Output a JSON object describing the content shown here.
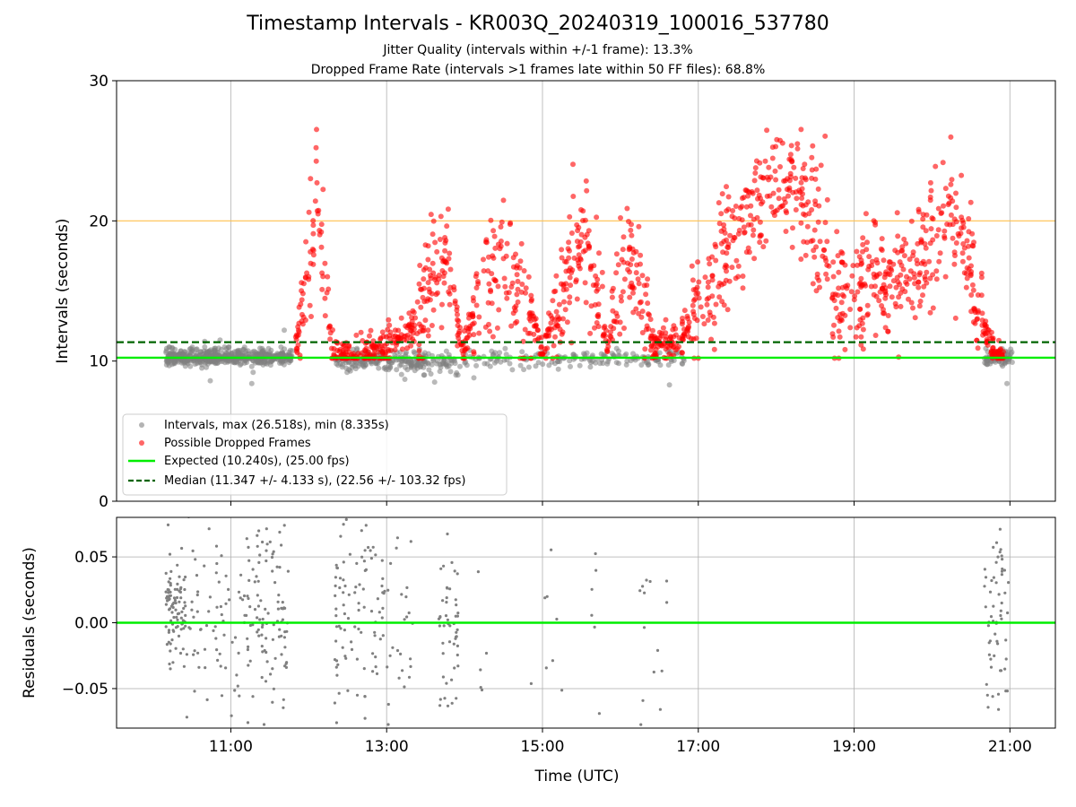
{
  "title": "Timestamp Intervals - KR003Q_20240319_100016_537780",
  "subtitle_1": "Jitter Quality (intervals within +/-1 frame): 13.3%",
  "subtitle_2": "Dropped Frame Rate (intervals >1 frames late within 50 FF files): 68.8%",
  "colors": {
    "intervals": "#808080",
    "dropped": "#ff0000",
    "expected": "#00ee00",
    "median": "#006400",
    "threshold": "#ffc04d",
    "grid": "#b0b0b0"
  },
  "chart_data": [
    {
      "type": "scatter",
      "ylabel": "Intervals (seconds)",
      "xlim": [
        "09:32",
        "21:35"
      ],
      "ylim": [
        0,
        30
      ],
      "yticks": [
        "0",
        "10",
        "20",
        "30"
      ],
      "grid": true,
      "legend_position": "lower-left",
      "expected_interval": 10.24,
      "median_interval": 11.347,
      "threshold_interval": 20.0,
      "legend": [
        "Intervals, max (26.518s), min (8.335s)",
        "Possible Dropped Frames",
        "Expected (10.240s), (25.00 fps)",
        "Median (11.347 +/- 4.133 s), (22.56 +/- 103.32 fps)"
      ],
      "series": [
        {
          "name": "Intervals, max (26.518s), min (8.335s)",
          "marker": "circle",
          "segments": [
            {
              "from": "10:10",
              "to": "11:48",
              "y_min": 9.7,
              "y_max": 10.9,
              "n": 520,
              "outliers": [
                8.4,
                8.6,
                9.2,
                11.4,
                11.5,
                12.2
              ]
            },
            {
              "from": "12:20",
              "to": "13:55",
              "y_min": 9.2,
              "y_max": 10.8,
              "n": 220,
              "outliers": [
                8.5,
                8.7,
                9.0
              ]
            },
            {
              "from": "13:55",
              "to": "16:50",
              "y_min": 9.5,
              "y_max": 10.8,
              "n": 160,
              "outliers": [
                8.3,
                8.8
              ]
            },
            {
              "from": "20:40",
              "to": "21:02",
              "y_min": 9.6,
              "y_max": 10.9,
              "n": 70,
              "outliers": [
                8.4
              ]
            }
          ]
        },
        {
          "name": "Possible Dropped Frames",
          "marker": "circle",
          "trend": [
            [
              "11:50",
              10.8
            ],
            [
              "11:56",
              15.0
            ],
            [
              "12:02",
              19.0
            ],
            [
              "12:06",
              21.0
            ],
            [
              "12:10",
              19.0
            ],
            [
              "12:18",
              10.6
            ],
            [
              "12:40",
              10.5
            ],
            [
              "12:55",
              10.6
            ],
            [
              "13:05",
              11.5
            ],
            [
              "13:20",
              12.5
            ],
            [
              "13:35",
              15.5
            ],
            [
              "13:45",
              18.5
            ],
            [
              "13:58",
              10.5
            ],
            [
              "14:15",
              15.5
            ],
            [
              "14:30",
              17.0
            ],
            [
              "14:50",
              13.5
            ],
            [
              "15:00",
              10.8
            ],
            [
              "15:15",
              15.0
            ],
            [
              "15:30",
              19.0
            ],
            [
              "15:45",
              14.0
            ],
            [
              "15:50",
              10.8
            ],
            [
              "16:00",
              17.0
            ],
            [
              "16:15",
              16.0
            ],
            [
              "16:25",
              11.0
            ],
            [
              "16:45",
              11.5
            ],
            [
              "17:00",
              14.0
            ],
            [
              "17:20",
              17.5
            ],
            [
              "17:40",
              21.0
            ],
            [
              "18:00",
              23.0
            ],
            [
              "18:20",
              21.5
            ],
            [
              "18:40",
              18.0
            ],
            [
              "18:45",
              13.5
            ],
            [
              "19:00",
              16.0
            ],
            [
              "19:30",
              15.5
            ],
            [
              "19:50",
              17.5
            ],
            [
              "20:10",
              20.0
            ],
            [
              "20:25",
              19.0
            ],
            [
              "20:35",
              14.0
            ],
            [
              "20:45",
              11.0
            ],
            [
              "20:55",
              10.5
            ]
          ],
          "spread": 1.8,
          "n": 1500,
          "max": 26.518
        }
      ]
    },
    {
      "type": "scatter",
      "ylabel": "Residuals (seconds)",
      "xlabel": "Time (UTC)",
      "xlim": [
        "09:32",
        "21:35"
      ],
      "ylim": [
        -0.08,
        0.08
      ],
      "yticks": [
        "−0.05",
        "0.00",
        "0.05"
      ],
      "xticks": [
        "11:00",
        "13:00",
        "15:00",
        "17:00",
        "19:00",
        "21:00"
      ],
      "zero_line": 0.0,
      "grid": true,
      "series": [
        {
          "name": "Residuals",
          "marker": "point",
          "clusters": [
            {
              "from": "10:10",
              "to": "10:25",
              "center": 0.01,
              "sd": 0.02,
              "n": 90
            },
            {
              "from": "10:25",
              "to": "11:10",
              "center": 0.0,
              "sd": 0.045,
              "n": 70
            },
            {
              "from": "11:10",
              "to": "11:45",
              "center": 0.005,
              "sd": 0.04,
              "n": 110
            },
            {
              "from": "12:20",
              "to": "12:45",
              "center": 0.0,
              "sd": 0.05,
              "n": 70
            },
            {
              "from": "12:45",
              "to": "13:20",
              "center": 0.0,
              "sd": 0.05,
              "n": 55
            },
            {
              "from": "13:40",
              "to": "13:55",
              "center": -0.005,
              "sd": 0.035,
              "n": 50
            },
            {
              "from": "14:05",
              "to": "14:20",
              "center": -0.02,
              "sd": 0.05,
              "n": 6
            },
            {
              "from": "14:50",
              "to": "15:20",
              "center": 0.0,
              "sd": 0.05,
              "n": 8
            },
            {
              "from": "15:35",
              "to": "15:45",
              "center": -0.01,
              "sd": 0.04,
              "n": 6
            },
            {
              "from": "16:15",
              "to": "16:40",
              "center": 0.0,
              "sd": 0.05,
              "n": 14
            },
            {
              "from": "20:40",
              "to": "21:00",
              "center": 0.005,
              "sd": 0.035,
              "n": 60
            }
          ]
        }
      ]
    }
  ]
}
